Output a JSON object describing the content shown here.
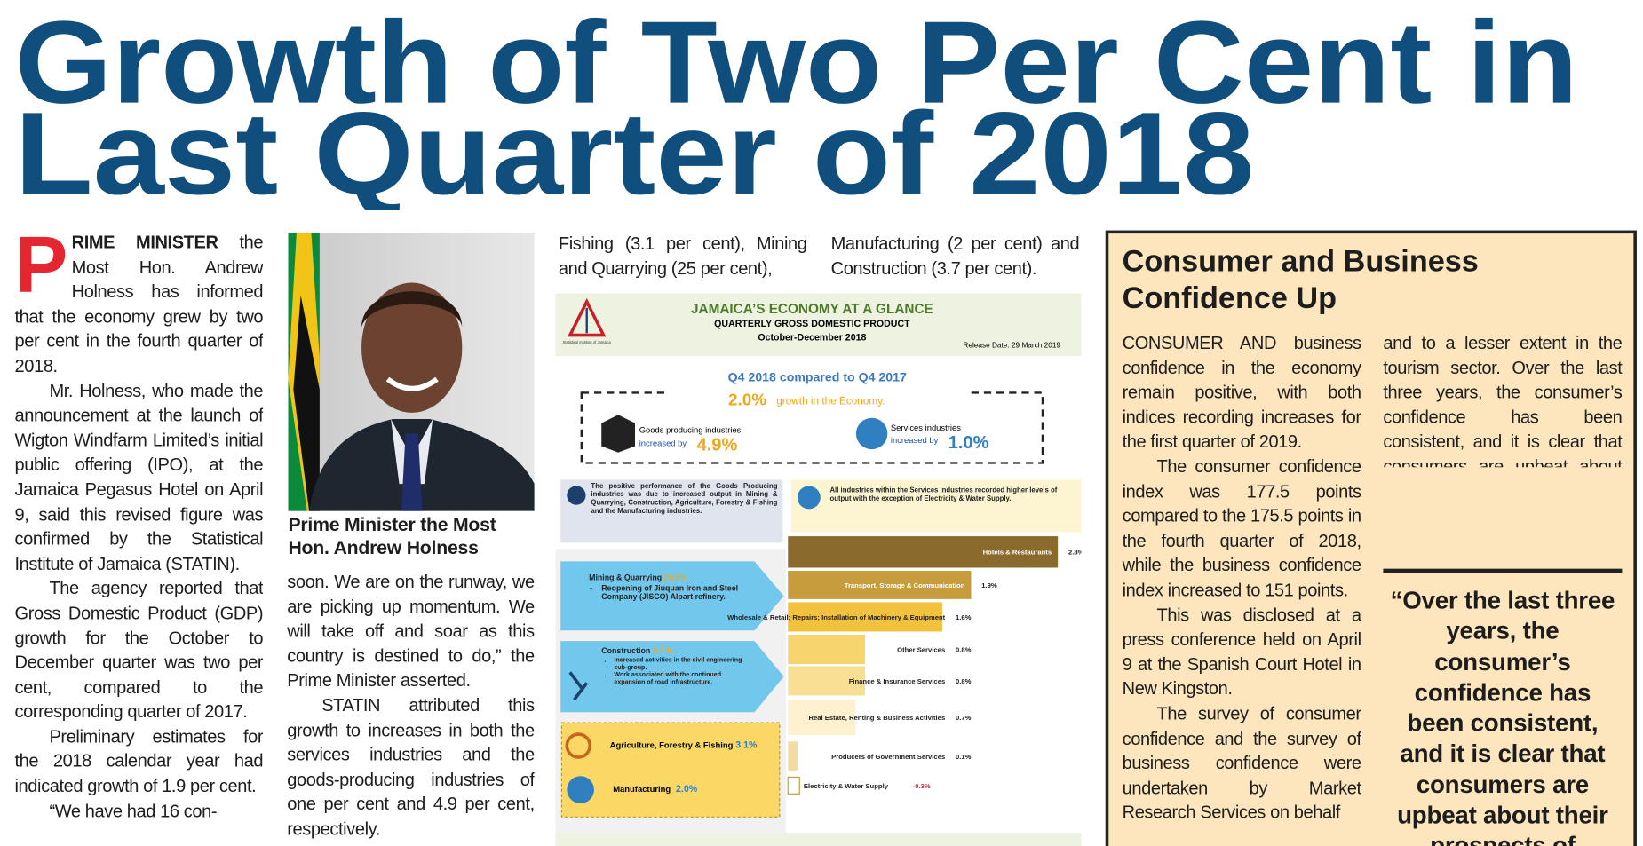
{
  "header": {
    "title_lines": [
      "Growth of Two Per Cent in",
      "Last Quarter of 2018"
    ]
  },
  "article": {
    "drop_cap": "P",
    "lead_bold": "RIME MINISTER",
    "col1": [
      " the Most Hon. Andrew Holness has informed that the economy grew by two per cent in the fourth quarter of 2018.",
      "Mr. Holness, who made the announcement at the launch of Wigton Windfarm Limited’s initial public offering (IPO), at the Jamaica Pegasus Hotel on April 9, said this revised figure was confirmed by the Statistical Institute of Jamaica (STATIN).",
      "The agency reported that Gross Domestic Product (GDP) growth for the October to December quarter was two per cent, compared to the corresponding quarter of 2017.",
      "Preliminary estimates for the 2018 calendar year had indicated growth of 1.9 per cent.",
      "“We have had 16 con-"
    ],
    "photo_caption": "Prime Minister the Most Hon. Andrew Holness",
    "col2": [
      "soon. We are on the runway, we are picking up momentum. We will take off and soar as this country is destined to do,” the Prime Minister asserted.",
      "STATIN attributed this growth to increases in both the services industries and the goods-producing industries of one per cent and 4.9 per cent, respectively."
    ],
    "col3": [
      "Fishing (3.1 per cent), Mining and Quarrying (25 per cent),"
    ],
    "col4": [
      "Manufacturing (2 per cent) and Construction (3.7 per cent)."
    ]
  },
  "infographic": {
    "title": "JAMAICA’S ECONOMY AT A GLANCE",
    "subtitle": "QUARTERLY GROSS DOMESTIC PRODUCT",
    "period": "October-December 2018",
    "release": "Release Date: 29 March 2019",
    "logo_text": "Statistical Institute of Jamaica",
    "comparison": "Q4 2018 compared to Q4 2017",
    "economy_growth": "2.0%",
    "economy_growth_text": "growth in the Economy.",
    "goods_label": "Goods producing industries",
    "goods_prefix": "increased by",
    "goods_increase": "4.9%",
    "services_label": "Services industries",
    "services_prefix": "increased by",
    "services_increase": "1.0%",
    "goods_note": "The positive performance of the Goods Producing industries was due to increased output in Mining & Quarrying, Construction, Agriculture, Forestry & Fishing and the Manufacturing industries.",
    "services_note": "All industries within the Services industries recorded higher levels of output with the exception of Electricity & Water Supply.",
    "mining": {
      "name": "Mining & Quarrying",
      "growth": "25.0%",
      "bullets": [
        "Reopening of Jiuquan Iron and Steel Company (JISCO) Alpart refinery."
      ]
    },
    "construction": {
      "name": "Construction",
      "growth": "3.7 %",
      "bullets": [
        "Increased activities in the civil engineering sub-group.",
        "Work associated with the continued expansion of road infrastructure."
      ]
    },
    "agriculture": {
      "name": "Agriculture, Forestry & Fishing",
      "growth": "3.1%"
    },
    "manufacturing": {
      "name": "Manufacturing",
      "growth": "2.0%"
    },
    "sectors": {
      "categories": [
        "Hotels & Restaurants",
        "Transport, Storage & Communication",
        "Wholesale & Retail; Repairs; Installation of Machinery & Equipment",
        "Other Services",
        "Finance & Insurance Services",
        "Real Estate, Renting & Business Activities",
        "Producers of Government Services",
        "Electricity & Water Supply"
      ],
      "values": [
        2.8,
        1.9,
        1.6,
        0.8,
        0.8,
        0.7,
        0.1,
        -0.3
      ],
      "value_labels": [
        "2.8%",
        "1.9%",
        "1.6%",
        "0.8%",
        "0.8%",
        "0.7%",
        "0.1%",
        "-0.3%"
      ],
      "colors": [
        "#8b6a2e",
        "#c79c3c",
        "#f2c13e",
        "#f7d46e",
        "#f9df93",
        "#fdf1cf",
        "#f5dba1",
        "#ffffff"
      ]
    }
  },
  "sidebar": {
    "title": "Consumer and Business Confidence Up",
    "col1": [
      "CONSUMER AND business confidence in the economy remain positive, with both indices recording increases for the first quarter of 2019.",
      "The consumer confidence index was 177.5 points compared to the 175.5 points in the fourth quarter of 2018, while the business confidence index increased to 151 points.",
      "This was disclosed at a press conference held on April 9 at the Spanish Court Hotel in New Kingston.",
      "The survey of consumer confidence and the survey of business confidence were undertaken by Market Research Services on behalf"
    ],
    "col2": [
      "and to a lesser extent in the tourism sector. Over the last three years, the consumer’s confidence has been consistent, and it is clear that consumers are upbeat about their prospects of getting a job,” Mr. Anderson said."
    ],
    "pull_quote": "“Over the last three years, the consumer’s confidence has been consistent, and it is clear that consumers are upbeat about their prospects of"
  }
}
